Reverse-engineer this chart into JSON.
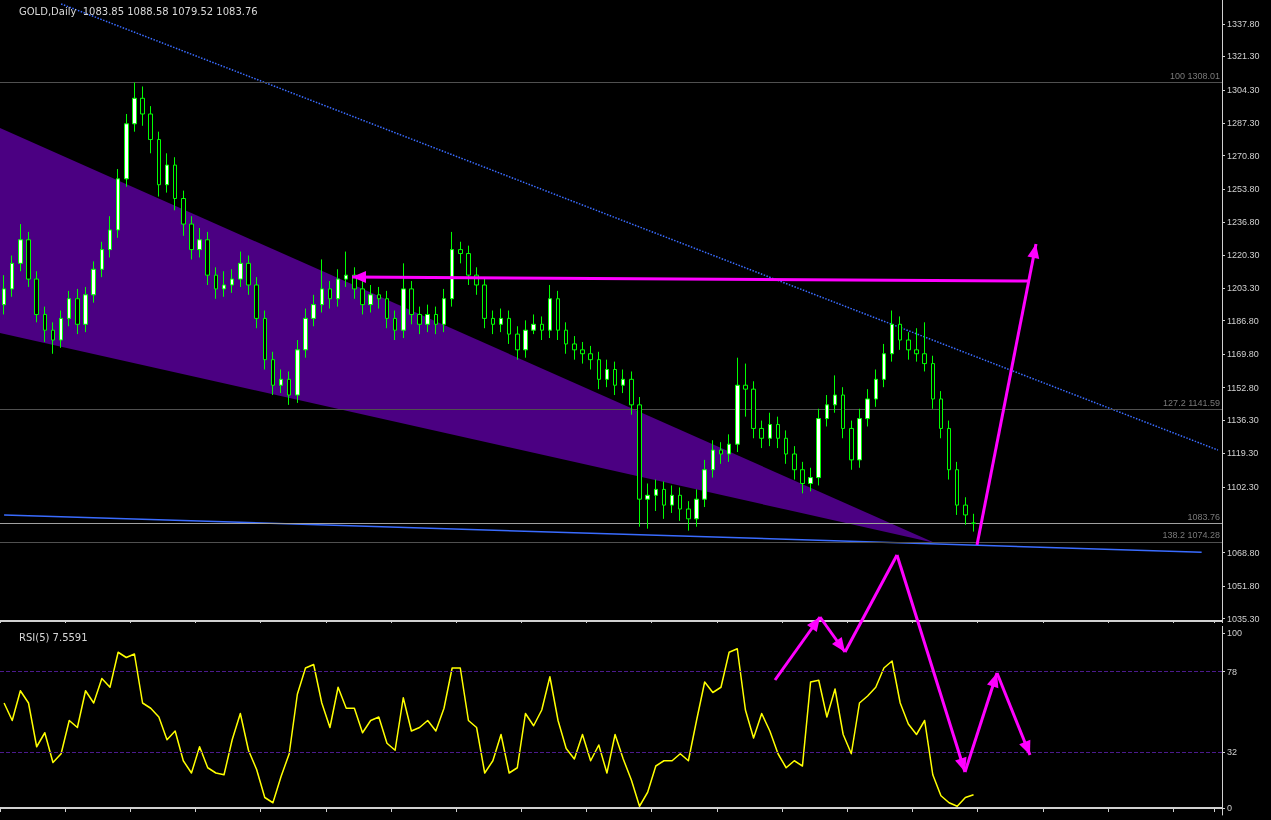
{
  "chart_data": [
    {
      "type": "candlestick",
      "title": "GOLD,Daily  1083.85 1088.58 1079.52 1083.76",
      "color": "#00ff00",
      "categories": [
        null,
        null,
        null,
        null,
        null,
        null,
        null,
        null,
        null,
        null,
        null,
        null,
        null,
        null,
        null,
        null,
        null,
        null,
        null,
        null,
        null,
        null,
        null,
        null,
        null,
        null,
        null,
        null,
        null,
        null,
        null,
        null,
        null,
        null,
        null,
        null,
        null,
        null,
        null,
        null,
        null,
        null,
        null,
        null,
        null,
        null,
        null,
        null,
        null,
        null,
        null,
        null,
        null,
        null,
        null,
        null,
        null,
        null,
        null,
        null,
        null,
        null,
        null,
        null,
        null,
        null,
        null,
        null,
        null,
        null,
        null,
        null,
        null,
        null,
        null,
        null,
        null,
        null,
        null,
        null,
        null,
        null,
        null,
        null,
        null,
        null,
        null,
        null,
        null,
        null,
        null,
        null,
        null,
        null,
        null,
        null,
        null,
        null,
        null,
        null,
        null,
        null,
        null,
        null,
        null,
        null,
        null,
        null,
        null,
        null,
        null,
        null,
        null,
        null,
        null,
        null,
        null,
        null,
        null,
        null,
        null,
        null,
        null,
        null,
        null,
        null,
        null,
        null,
        null,
        null,
        null,
        null,
        null,
        null,
        null,
        null,
        null,
        null,
        null,
        null,
        null,
        null,
        null,
        null,
        null,
        null,
        null,
        null,
        null,
        null
      ],
      "ohlc": [
        [
          1195,
          1210,
          1190,
          1203
        ],
        [
          1203,
          1220,
          1199,
          1216
        ],
        [
          1216,
          1236,
          1212,
          1228
        ],
        [
          1228,
          1232,
          1204,
          1208
        ],
        [
          1208,
          1212,
          1186,
          1190
        ],
        [
          1190,
          1194,
          1176,
          1182
        ],
        [
          1182,
          1186,
          1170,
          1177
        ],
        [
          1177,
          1192,
          1173,
          1188
        ],
        [
          1188,
          1202,
          1184,
          1198
        ],
        [
          1198,
          1203,
          1180,
          1185
        ],
        [
          1185,
          1204,
          1181,
          1200
        ],
        [
          1200,
          1217,
          1196,
          1213
        ],
        [
          1213,
          1227,
          1209,
          1223
        ],
        [
          1223,
          1240,
          1219,
          1233
        ],
        [
          1233,
          1264,
          1229,
          1259
        ],
        [
          1259,
          1292,
          1255,
          1287
        ],
        [
          1287,
          1308,
          1283,
          1300
        ],
        [
          1300,
          1306,
          1286,
          1292
        ],
        [
          1292,
          1296,
          1272,
          1279
        ],
        [
          1279,
          1283,
          1250,
          1256
        ],
        [
          1256,
          1272,
          1252,
          1266
        ],
        [
          1266,
          1270,
          1243,
          1249
        ],
        [
          1249,
          1253,
          1230,
          1236
        ],
        [
          1236,
          1240,
          1218,
          1223
        ],
        [
          1223,
          1234,
          1219,
          1228
        ],
        [
          1228,
          1232,
          1205,
          1210
        ],
        [
          1210,
          1214,
          1198,
          1203
        ],
        [
          1203,
          1212,
          1199,
          1205
        ],
        [
          1205,
          1213,
          1201,
          1208
        ],
        [
          1208,
          1222,
          1204,
          1216
        ],
        [
          1216,
          1220,
          1200,
          1205
        ],
        [
          1205,
          1209,
          1183,
          1188
        ],
        [
          1188,
          1192,
          1162,
          1167
        ],
        [
          1167,
          1171,
          1149,
          1154
        ],
        [
          1154,
          1162,
          1150,
          1157
        ],
        [
          1157,
          1161,
          1144,
          1149
        ],
        [
          1149,
          1177,
          1145,
          1172
        ],
        [
          1172,
          1193,
          1168,
          1188
        ],
        [
          1188,
          1200,
          1184,
          1195
        ],
        [
          1195,
          1218,
          1191,
          1203
        ],
        [
          1203,
          1207,
          1193,
          1198
        ],
        [
          1198,
          1213,
          1194,
          1208
        ],
        [
          1208,
          1222,
          1204,
          1210
        ],
        [
          1210,
          1214,
          1198,
          1203
        ],
        [
          1203,
          1207,
          1190,
          1195
        ],
        [
          1195,
          1205,
          1191,
          1200
        ],
        [
          1200,
          1204,
          1193,
          1198
        ],
        [
          1198,
          1202,
          1183,
          1188
        ],
        [
          1188,
          1192,
          1177,
          1182
        ],
        [
          1182,
          1216,
          1178,
          1203
        ],
        [
          1203,
          1207,
          1185,
          1190
        ],
        [
          1190,
          1194,
          1180,
          1185
        ],
        [
          1185,
          1195,
          1181,
          1190
        ],
        [
          1190,
          1194,
          1180,
          1185
        ],
        [
          1185,
          1203,
          1181,
          1198
        ],
        [
          1198,
          1232,
          1194,
          1223
        ],
        [
          1223,
          1227,
          1216,
          1221
        ],
        [
          1221,
          1225,
          1205,
          1210
        ],
        [
          1210,
          1214,
          1200,
          1205
        ],
        [
          1205,
          1209,
          1183,
          1188
        ],
        [
          1188,
          1192,
          1180,
          1185
        ],
        [
          1185,
          1193,
          1181,
          1188
        ],
        [
          1188,
          1192,
          1175,
          1180
        ],
        [
          1180,
          1184,
          1167,
          1172
        ],
        [
          1172,
          1187,
          1168,
          1182
        ],
        [
          1182,
          1190,
          1180,
          1185
        ],
        [
          1185,
          1189,
          1177,
          1182
        ],
        [
          1182,
          1205,
          1178,
          1198
        ],
        [
          1198,
          1202,
          1177,
          1182
        ],
        [
          1182,
          1186,
          1170,
          1175
        ],
        [
          1175,
          1179,
          1167,
          1172
        ],
        [
          1172,
          1176,
          1165,
          1170
        ],
        [
          1170,
          1174,
          1162,
          1167
        ],
        [
          1167,
          1171,
          1152,
          1157
        ],
        [
          1157,
          1167,
          1153,
          1162
        ],
        [
          1162,
          1166,
          1149,
          1154
        ],
        [
          1154,
          1162,
          1150,
          1157
        ],
        [
          1157,
          1161,
          1139,
          1144
        ],
        [
          1144,
          1148,
          1082,
          1096
        ],
        [
          1096,
          1104,
          1081,
          1098
        ],
        [
          1098,
          1106,
          1090,
          1101
        ],
        [
          1101,
          1105,
          1086,
          1093
        ],
        [
          1093,
          1103,
          1089,
          1098
        ],
        [
          1098,
          1102,
          1085,
          1091
        ],
        [
          1091,
          1095,
          1080,
          1086
        ],
        [
          1086,
          1101,
          1082,
          1096
        ],
        [
          1096,
          1116,
          1092,
          1111
        ],
        [
          1111,
          1126,
          1107,
          1121
        ],
        [
          1121,
          1125,
          1114,
          1119
        ],
        [
          1119,
          1129,
          1115,
          1124
        ],
        [
          1124,
          1168,
          1120,
          1154
        ],
        [
          1154,
          1165,
          1138,
          1152
        ],
        [
          1152,
          1156,
          1127,
          1132
        ],
        [
          1132,
          1136,
          1122,
          1127
        ],
        [
          1127,
          1140,
          1123,
          1134
        ],
        [
          1134,
          1138,
          1122,
          1127
        ],
        [
          1127,
          1131,
          1114,
          1119
        ],
        [
          1119,
          1123,
          1106,
          1111
        ],
        [
          1111,
          1115,
          1099,
          1104
        ],
        [
          1104,
          1112,
          1100,
          1107
        ],
        [
          1107,
          1142,
          1103,
          1137
        ],
        [
          1137,
          1149,
          1133,
          1144
        ],
        [
          1144,
          1159,
          1140,
          1149
        ],
        [
          1149,
          1153,
          1127,
          1132
        ],
        [
          1132,
          1136,
          1111,
          1116
        ],
        [
          1116,
          1142,
          1112,
          1137
        ],
        [
          1137,
          1152,
          1133,
          1147
        ],
        [
          1147,
          1162,
          1143,
          1157
        ],
        [
          1157,
          1175,
          1153,
          1170
        ],
        [
          1170,
          1192,
          1166,
          1185
        ],
        [
          1185,
          1189,
          1172,
          1177
        ],
        [
          1177,
          1181,
          1167,
          1172
        ],
        [
          1172,
          1183,
          1166,
          1170
        ],
        [
          1170,
          1186,
          1161,
          1165
        ],
        [
          1165,
          1169,
          1142,
          1147
        ],
        [
          1147,
          1151,
          1127,
          1132
        ],
        [
          1132,
          1136,
          1106,
          1111
        ],
        [
          1111,
          1115,
          1088,
          1093
        ],
        [
          1093,
          1097,
          1083,
          1088
        ],
        [
          1083.85,
          1088.58,
          1079.52,
          1083.76
        ],
        null,
        null,
        null,
        null,
        null,
        null,
        null,
        null,
        null,
        null,
        null,
        null,
        null,
        null,
        null,
        null,
        null,
        null,
        null,
        null,
        null,
        null,
        null,
        null,
        null,
        null,
        null,
        null,
        null,
        null
      ],
      "series": [
        {
          "type": "line",
          "color": "#3a6cff",
          "line_style": "dotted",
          "values": [
            null,
            null,
            null,
            null,
            null,
            null,
            null,
            1348,
            null,
            null,
            null,
            null,
            null,
            null,
            null,
            null,
            null,
            null,
            null,
            null,
            null,
            null,
            null,
            null,
            null,
            null,
            null,
            null,
            null,
            null,
            null,
            null,
            null,
            null,
            null,
            null,
            null,
            null,
            null,
            null,
            null,
            null,
            null,
            null,
            null,
            null,
            null,
            null,
            null,
            null,
            null,
            null,
            null,
            null,
            null,
            null,
            null,
            null,
            null,
            null,
            null,
            null,
            null,
            null,
            null,
            null,
            null,
            null,
            null,
            null,
            null,
            null,
            null,
            null,
            null,
            null,
            null,
            null,
            null,
            null,
            null,
            null,
            null,
            null,
            null,
            null,
            null,
            null,
            null,
            null,
            null,
            null,
            null,
            null,
            null,
            null,
            null,
            null,
            null,
            null,
            null,
            null,
            null,
            null,
            null,
            null,
            null,
            null,
            null,
            null,
            null,
            null,
            null,
            null,
            null,
            null,
            null,
            null,
            null,
            null,
            null,
            null,
            null,
            null,
            null,
            null,
            null,
            null,
            null,
            null,
            null,
            null,
            null,
            null,
            null,
            null,
            null,
            null,
            null,
            null,
            null,
            null,
            null,
            null,
            null,
            null,
            null,
            null,
            null,
            1121
          ]
        },
        {
          "type": "line",
          "color": "#3a6cff",
          "line_style": "solid",
          "values": [
            1088,
            null,
            null,
            null,
            null,
            null,
            null,
            null,
            null,
            null,
            null,
            null,
            null,
            null,
            null,
            null,
            null,
            null,
            null,
            null,
            null,
            null,
            null,
            null,
            null,
            null,
            null,
            null,
            null,
            null,
            null,
            null,
            null,
            null,
            null,
            null,
            null,
            null,
            null,
            null,
            null,
            null,
            null,
            null,
            null,
            null,
            null,
            null,
            null,
            null,
            null,
            null,
            null,
            null,
            null,
            null,
            null,
            null,
            null,
            null,
            null,
            null,
            null,
            null,
            null,
            null,
            null,
            null,
            null,
            null,
            null,
            null,
            null,
            null,
            null,
            null,
            null,
            null,
            null,
            null,
            null,
            null,
            null,
            null,
            null,
            null,
            null,
            null,
            null,
            null,
            null,
            null,
            null,
            null,
            null,
            null,
            null,
            null,
            null,
            null,
            null,
            null,
            null,
            null,
            null,
            null,
            null,
            null,
            null,
            null,
            null,
            null,
            null,
            null,
            null,
            null,
            null,
            null,
            null,
            null,
            null,
            null,
            null,
            null,
            null,
            null,
            null,
            null,
            null,
            null,
            null,
            null,
            null,
            null,
            null,
            null,
            null,
            null,
            null,
            null,
            null,
            null,
            null,
            null,
            null,
            null,
            null,
            1069,
            null,
            null
          ]
        }
      ],
      "ylim": [
        1034,
        1350
      ],
      "yticks": [
        {
          "value": 1035.3,
          "label": "1035.30"
        },
        {
          "value": 1051.8,
          "label": "1051.80"
        },
        {
          "value": 1068.8,
          "label": "1068.80"
        },
        {
          "value": 1102.3,
          "label": "1102.30"
        },
        {
          "value": 1119.3,
          "label": "1119.30"
        },
        {
          "value": 1136.3,
          "label": "1136.30"
        },
        {
          "value": 1152.8,
          "label": "1152.80"
        },
        {
          "value": 1169.8,
          "label": "1169.80"
        },
        {
          "value": 1186.8,
          "label": "1186.80"
        },
        {
          "value": 1203.3,
          "label": "1203.30"
        },
        {
          "value": 1220.3,
          "label": "1220.30"
        },
        {
          "value": 1236.8,
          "label": "1236.80"
        },
        {
          "value": 1253.8,
          "label": "1253.80"
        },
        {
          "value": 1270.8,
          "label": "1270.80"
        },
        {
          "value": 1287.3,
          "label": "1287.30"
        },
        {
          "value": 1304.3,
          "label": "1304.30"
        },
        {
          "value": 1321.3,
          "label": "1321.30"
        },
        {
          "value": 1337.8,
          "label": "1337.80"
        }
      ],
      "ref_lines": [
        {
          "axis": "y",
          "value": 1308.01,
          "label": "100 1308.01",
          "color": "#505050"
        },
        {
          "axis": "y",
          "value": 1141.59,
          "label": "127.2 1141.59",
          "color": "#505050"
        },
        {
          "axis": "y",
          "value": 1083.76,
          "label": "1083.76",
          "color": "#a0a0a0"
        },
        {
          "axis": "y",
          "value": 1074.28,
          "label": "138.2 1074.28",
          "color": "#505050"
        }
      ],
      "tick_labels": "y"
    },
    {
      "type": "line",
      "title": "RSI(5) 7.5591",
      "color": "#ffff00",
      "categories": [
        null,
        null,
        null,
        null,
        null,
        null,
        null,
        null,
        null,
        null,
        null,
        null,
        null,
        null,
        null,
        null,
        null,
        null,
        null,
        null,
        null,
        null,
        null,
        null,
        null,
        null,
        null,
        null,
        null,
        null,
        null,
        null,
        null,
        null,
        null,
        null,
        null,
        null,
        null,
        null,
        null,
        null,
        null,
        null,
        null,
        null,
        null,
        null,
        null,
        null,
        null,
        null,
        null,
        null,
        null,
        null,
        null,
        null,
        null,
        null,
        null,
        null,
        null,
        null,
        null,
        null,
        null,
        null,
        null,
        null,
        null,
        null,
        null,
        null,
        null,
        null,
        null,
        null,
        null,
        null,
        null,
        null,
        null,
        null,
        null,
        null,
        null,
        null,
        null,
        null,
        null,
        null,
        null,
        null,
        null,
        null,
        null,
        null,
        null,
        null,
        null,
        null,
        null,
        null,
        null,
        null,
        null,
        null,
        null,
        null,
        null,
        null,
        null,
        null,
        null,
        null,
        null,
        null,
        null,
        null,
        null,
        null,
        null,
        null,
        null,
        null,
        null,
        null,
        null,
        null,
        null,
        null,
        null,
        null,
        null,
        null,
        null,
        null,
        null,
        null,
        null,
        null,
        null,
        null,
        null,
        null,
        null,
        null,
        null,
        null
      ],
      "values": [
        60,
        50,
        67,
        60,
        35,
        43,
        26,
        31,
        50,
        46,
        67,
        60,
        74,
        69,
        89,
        86,
        88,
        60,
        57,
        52,
        39,
        44,
        27,
        20,
        35,
        23,
        20,
        19,
        39,
        54,
        33,
        22,
        6,
        3,
        18,
        31,
        65,
        80,
        82,
        60,
        46,
        69,
        57,
        57,
        43,
        50,
        52,
        37,
        33,
        63,
        44,
        46,
        50,
        44,
        57,
        80,
        80,
        50,
        46,
        20,
        27,
        42,
        20,
        23,
        54,
        47,
        56,
        75,
        50,
        34,
        28,
        42,
        27,
        36,
        20,
        42,
        28,
        16,
        1,
        9,
        24,
        27,
        27,
        31,
        27,
        50,
        72,
        66,
        69,
        89,
        91,
        56,
        40,
        54,
        44,
        31,
        23,
        27,
        24,
        72,
        73,
        52,
        68,
        42,
        31,
        60,
        64,
        69,
        80,
        84,
        60,
        48,
        42,
        50,
        19,
        7,
        3,
        1,
        6,
        7.6,
        null,
        null,
        null,
        null,
        null,
        null,
        null,
        null,
        null,
        null,
        null,
        null,
        null,
        null,
        null,
        null,
        null,
        null,
        null,
        null,
        null,
        null,
        null,
        null,
        null,
        null,
        null,
        null,
        null,
        null
      ],
      "ylim": [
        -4,
        104
      ],
      "yticks": [
        0,
        32,
        78,
        100
      ],
      "ref_lines": [
        {
          "axis": "y",
          "value": 78,
          "color": "#4b1a8c",
          "line_style": "dashed"
        },
        {
          "axis": "y",
          "value": 32,
          "color": "#4b1a8c",
          "line_style": "dashed"
        }
      ],
      "tick_labels": "y"
    }
  ]
}
